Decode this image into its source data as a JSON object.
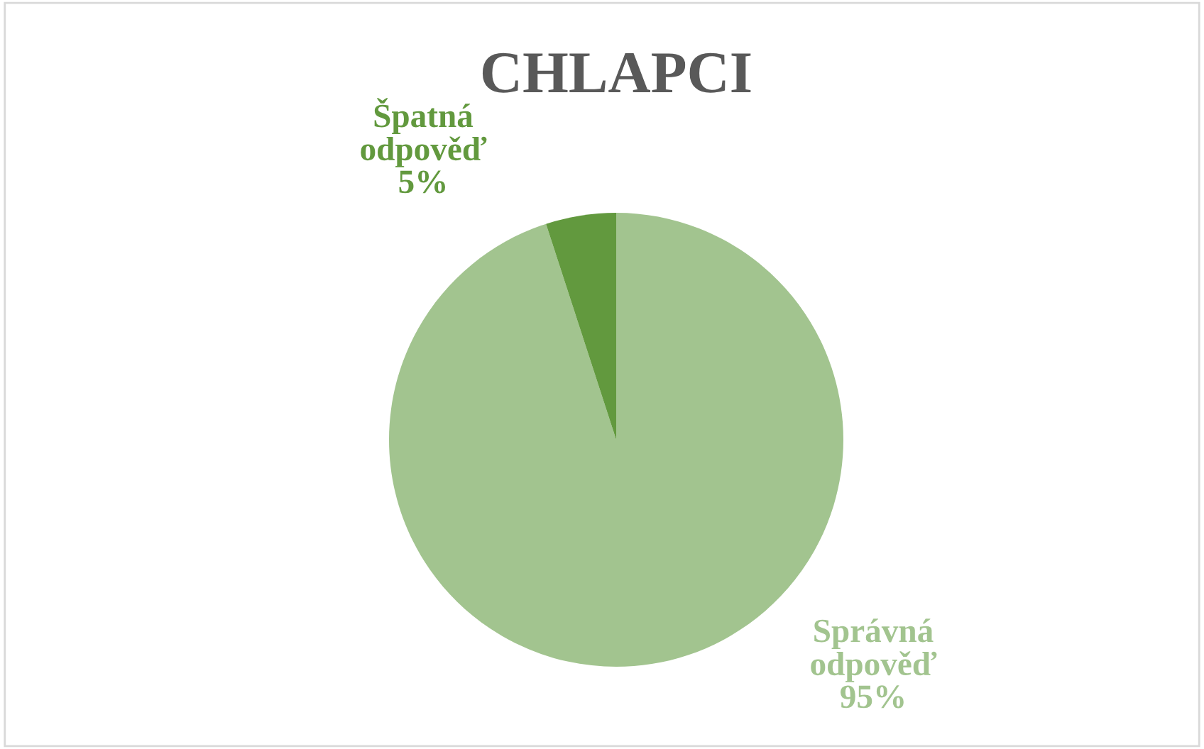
{
  "chart_data": {
    "type": "pie",
    "title": "CHLAPCI",
    "categories": [
      "Správná odpověď",
      "Špatná odpověď"
    ],
    "values": [
      95,
      5
    ],
    "colors": [
      "#a2c48f",
      "#62993e"
    ],
    "value_labels": [
      "95%",
      "5%"
    ],
    "legend": false
  }
}
